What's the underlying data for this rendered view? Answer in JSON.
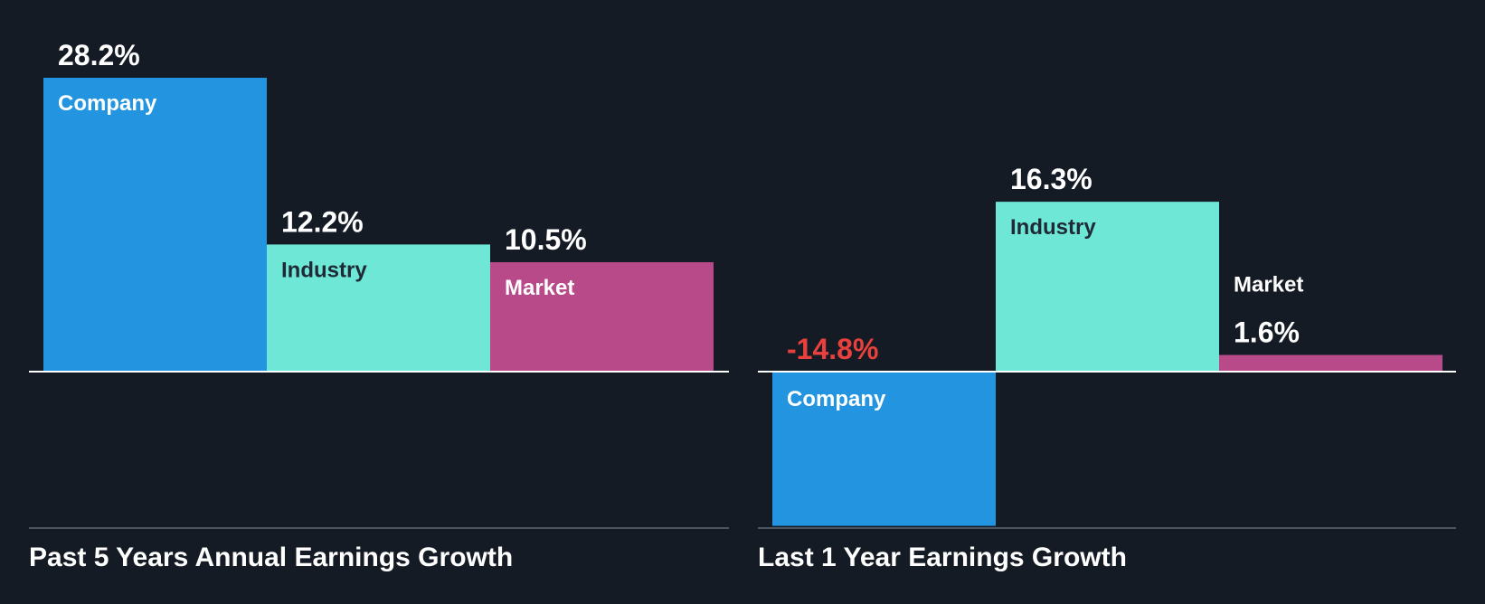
{
  "colors": {
    "background": "#151b24",
    "company": "#2394e0",
    "industry": "#6ee7d7",
    "market": "#b84a89",
    "negative_text": "#e8403c",
    "positive_text": "#ffffff",
    "label_on_company": "#ffffff",
    "label_on_industry": "#1f2a36",
    "label_on_market": "#ffffff",
    "axis": "#ffffff",
    "baseline": "#4a5563"
  },
  "chart_data": [
    {
      "type": "bar",
      "title": "Past 5 Years Annual Earnings Growth",
      "categories": [
        "Company",
        "Industry",
        "Market"
      ],
      "values": [
        28.2,
        12.2,
        10.5
      ],
      "value_labels": [
        "28.2%",
        "12.2%",
        "10.5%"
      ],
      "unit": "%",
      "ylim": [
        -15,
        28.2
      ]
    },
    {
      "type": "bar",
      "title": "Last 1 Year Earnings Growth",
      "categories": [
        "Company",
        "Industry",
        "Market"
      ],
      "values": [
        -14.8,
        16.3,
        1.6
      ],
      "value_labels": [
        "-14.8%",
        "16.3%",
        "1.6%"
      ],
      "unit": "%",
      "ylim": [
        -15,
        28.2
      ]
    }
  ]
}
